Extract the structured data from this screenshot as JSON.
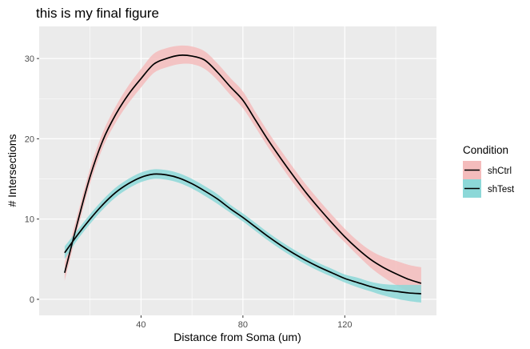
{
  "chart_data": {
    "type": "line",
    "title": "this is my final figure",
    "xlabel": "Distance from Soma (um)",
    "ylabel": "# Intersections",
    "xlim": [
      0,
      156
    ],
    "ylim": [
      -2,
      34
    ],
    "x_ticks": [
      40,
      80,
      120
    ],
    "x_tick_labels": [
      "40",
      "80",
      "120"
    ],
    "y_ticks": [
      0,
      10,
      20,
      30
    ],
    "y_tick_labels": [
      "0",
      "10",
      "20",
      "30"
    ],
    "grid": true,
    "legend": {
      "title": "Condition",
      "position": "right",
      "entries": [
        "shCtrl",
        "shTest"
      ]
    },
    "series": [
      {
        "name": "shCtrl",
        "color": "#F8766D",
        "band_color": "#f4bcbc",
        "x": [
          10,
          15,
          20,
          25,
          30,
          35,
          40,
          45,
          50,
          55,
          60,
          65,
          70,
          75,
          80,
          85,
          90,
          95,
          100,
          105,
          110,
          115,
          120,
          125,
          130,
          135,
          140,
          145,
          150
        ],
        "y": [
          3.3,
          9.5,
          15.3,
          19.8,
          23.0,
          25.5,
          27.5,
          29.3,
          30.0,
          30.4,
          30.3,
          29.8,
          28.3,
          26.5,
          24.8,
          22.3,
          19.8,
          17.5,
          15.3,
          13.2,
          11.3,
          9.5,
          7.8,
          6.3,
          5.0,
          4.0,
          3.2,
          2.5,
          2.0
        ],
        "lower": [
          2.3,
          8.6,
          14.4,
          18.9,
          22.0,
          24.4,
          26.4,
          28.2,
          28.9,
          29.3,
          29.3,
          28.7,
          27.3,
          25.5,
          23.8,
          21.4,
          18.9,
          16.6,
          14.4,
          12.4,
          10.5,
          8.7,
          7.1,
          5.5,
          4.0,
          2.8,
          1.8,
          1.0,
          0.4
        ],
        "upper": [
          4.5,
          10.5,
          16.3,
          20.8,
          24.0,
          26.6,
          28.7,
          30.6,
          31.3,
          31.6,
          31.5,
          30.9,
          29.4,
          27.6,
          25.9,
          23.3,
          20.8,
          18.5,
          16.3,
          14.2,
          12.3,
          10.5,
          8.8,
          7.3,
          6.1,
          5.3,
          4.8,
          4.3,
          4.0
        ]
      },
      {
        "name": "shTest",
        "color": "#00BFC4",
        "band_color": "#8cd8d8",
        "x": [
          10,
          15,
          20,
          25,
          30,
          35,
          40,
          45,
          50,
          55,
          60,
          65,
          70,
          75,
          80,
          85,
          90,
          95,
          100,
          105,
          110,
          115,
          120,
          125,
          130,
          135,
          140,
          145,
          150
        ],
        "y": [
          5.8,
          8.0,
          10.0,
          11.8,
          13.3,
          14.4,
          15.2,
          15.6,
          15.5,
          15.1,
          14.4,
          13.5,
          12.5,
          11.3,
          10.2,
          9.0,
          7.8,
          6.7,
          5.7,
          4.8,
          4.0,
          3.3,
          2.6,
          2.1,
          1.6,
          1.2,
          1.0,
          0.8,
          0.7
        ],
        "lower": [
          5.0,
          7.4,
          9.4,
          11.2,
          12.7,
          13.8,
          14.6,
          15.0,
          14.9,
          14.5,
          13.8,
          12.9,
          11.9,
          10.8,
          9.7,
          8.5,
          7.3,
          6.2,
          5.2,
          4.3,
          3.5,
          2.8,
          2.1,
          1.5,
          1.0,
          0.5,
          0.1,
          -0.2,
          -0.4
        ],
        "upper": [
          6.6,
          8.6,
          10.6,
          12.4,
          13.9,
          15.0,
          15.8,
          16.2,
          16.1,
          15.7,
          15.0,
          14.1,
          13.1,
          11.8,
          10.7,
          9.5,
          8.3,
          7.2,
          6.2,
          5.3,
          4.5,
          3.8,
          3.1,
          2.7,
          2.2,
          1.9,
          1.8,
          1.8,
          1.8
        ]
      }
    ]
  }
}
